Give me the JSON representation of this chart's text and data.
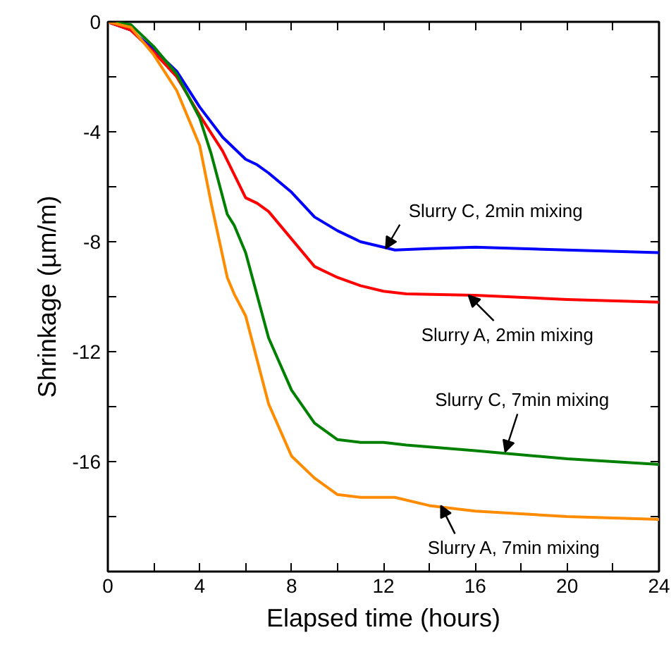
{
  "chart_data": {
    "type": "line",
    "xlabel": "Elapsed time (hours)",
    "ylabel": "Shrinkage (µm/m)",
    "xlim": [
      0,
      24
    ],
    "ylim": [
      -20,
      0
    ],
    "xticks": [
      0,
      {
        "value": 2,
        "label": null
      },
      4,
      {
        "value": 6,
        "label": null
      },
      8,
      {
        "value": 10,
        "label": null
      },
      12,
      {
        "value": 14,
        "label": null
      },
      16,
      {
        "value": 18,
        "label": null
      },
      20,
      {
        "value": 22,
        "label": null
      },
      24
    ],
    "yticks": [
      0,
      {
        "value": -2,
        "label": null
      },
      -4,
      {
        "value": -6,
        "label": null
      },
      -8,
      {
        "value": -10,
        "label": null
      },
      -12,
      {
        "value": -14,
        "label": null
      },
      -16,
      {
        "value": -18,
        "label": null
      }
    ],
    "grid": false,
    "line_style": "solid",
    "marker": "none",
    "series": [
      {
        "color": "#0000ff",
        "x": [
          0,
          1,
          2,
          3,
          4,
          5,
          6,
          6.5,
          7,
          8,
          9,
          10,
          11,
          12,
          12.5,
          14,
          16,
          20,
          24
        ],
        "values": [
          0,
          -0.3,
          -1.0,
          -1.8,
          -3.1,
          -4.2,
          -5.0,
          -5.2,
          -5.5,
          -6.2,
          -7.1,
          -7.6,
          -8.0,
          -8.2,
          -8.3,
          -8.25,
          -8.2,
          -8.3,
          -8.4
        ]
      },
      {
        "color": "#ff0000",
        "x": [
          0,
          1,
          2,
          3,
          4,
          5,
          6,
          6.5,
          7,
          8,
          9,
          10,
          11,
          12,
          13,
          16,
          20,
          24
        ],
        "values": [
          0,
          -0.3,
          -1.1,
          -2.0,
          -3.4,
          -4.7,
          -6.4,
          -6.6,
          -6.9,
          -7.9,
          -8.9,
          -9.3,
          -9.6,
          -9.8,
          -9.9,
          -9.95,
          -10.1,
          -10.2
        ]
      },
      {
        "color": "#008000",
        "x": [
          0,
          1,
          2,
          3,
          4,
          4.5,
          5.2,
          5.5,
          6,
          7,
          8,
          9,
          10,
          11,
          12,
          13,
          16,
          20,
          24
        ],
        "values": [
          0,
          -0.1,
          -0.9,
          -1.9,
          -3.5,
          -4.8,
          -7.0,
          -7.4,
          -8.4,
          -11.5,
          -13.4,
          -14.6,
          -15.2,
          -15.3,
          -15.3,
          -15.4,
          -15.6,
          -15.9,
          -16.1
        ]
      },
      {
        "color": "#ff8c00",
        "x": [
          0,
          1,
          2,
          3,
          4,
          4.5,
          5.2,
          5.5,
          6,
          7,
          8,
          9,
          10,
          11,
          12.5,
          14,
          16,
          20,
          24
        ],
        "values": [
          0,
          -0.2,
          -1.2,
          -2.5,
          -4.5,
          -6.6,
          -9.3,
          -9.9,
          -10.7,
          -13.9,
          -15.8,
          -16.6,
          -17.2,
          -17.3,
          -17.3,
          -17.6,
          -17.8,
          -18.0,
          -18.1
        ]
      }
    ],
    "annotations": [
      {
        "text": "Slurry C, 2min mixing",
        "x": 12.1,
        "y": -8.25
      },
      {
        "text": "Slurry A, 2min mixing",
        "x": 15.7,
        "y": -9.95
      },
      {
        "text": "Slurry C, 7min mixing",
        "x": 17.3,
        "y": -15.65
      },
      {
        "text": "Slurry A, 7min mixing",
        "x": 14.5,
        "y": -17.6
      }
    ]
  }
}
